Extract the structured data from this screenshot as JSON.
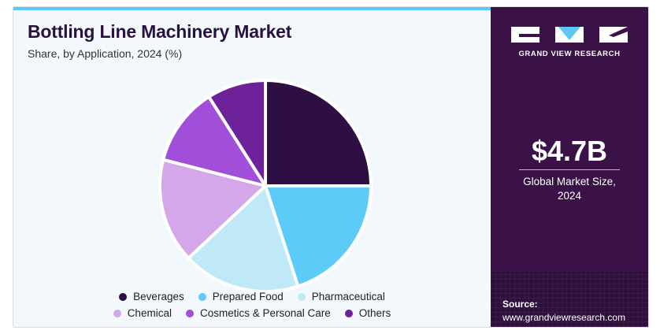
{
  "header": {
    "title": "Bottling Line Machinery Market",
    "subtitle": "Share, by Application, 2024 (%)"
  },
  "chart_data": {
    "type": "pie",
    "categories": [
      "Beverages",
      "Prepared Food",
      "Pharmaceutical",
      "Chemical",
      "Cosmetics & Personal Care",
      "Others"
    ],
    "values": [
      25,
      20,
      18,
      16,
      12,
      9
    ],
    "colors": [
      "#2e0f44",
      "#5ccbf7",
      "#bfe8f8",
      "#d3a7ea",
      "#a14fd8",
      "#6e2299"
    ],
    "start": "12 o'clock, clockwise",
    "legend_position": "bottom"
  },
  "sidebar": {
    "logo_text": "GRAND VIEW RESEARCH",
    "market_size": "$4.7B",
    "market_label_line1": "Global Market Size,",
    "market_label_line2": "2024",
    "source_label": "Source:",
    "source_url": "www.grandviewresearch.com"
  },
  "colors": {
    "panel": "#3a1247",
    "accent_bar": "#5bc8f5",
    "title": "#2a1240"
  }
}
